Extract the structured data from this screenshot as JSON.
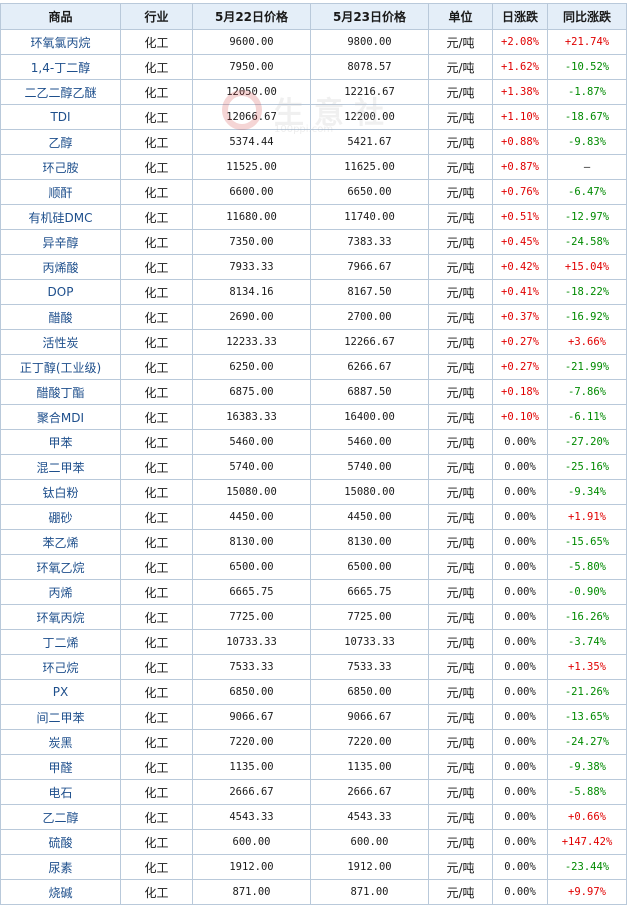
{
  "headers": [
    "商品",
    "行业",
    "5月22日价格",
    "5月23日价格",
    "单位",
    "日涨跌",
    "同比涨跌"
  ],
  "watermark": {
    "text": "生意社",
    "url": "100ppi.com"
  },
  "colors": {
    "up": "#e00000",
    "down": "#008a00",
    "header_bg": "#e4eef8",
    "name": "#1e4f8c"
  },
  "rows": [
    {
      "name": "环氧氯丙烷",
      "industry": "化工",
      "p22": "9600.00",
      "p23": "9800.00",
      "unit": "元/吨",
      "day": "+2.08%",
      "yoy": "+21.74%"
    },
    {
      "name": "1,4-丁二醇",
      "industry": "化工",
      "p22": "7950.00",
      "p23": "8078.57",
      "unit": "元/吨",
      "day": "+1.62%",
      "yoy": "-10.52%"
    },
    {
      "name": "二乙二醇乙醚",
      "industry": "化工",
      "p22": "12050.00",
      "p23": "12216.67",
      "unit": "元/吨",
      "day": "+1.38%",
      "yoy": "-1.87%"
    },
    {
      "name": "TDI",
      "industry": "化工",
      "p22": "12066.67",
      "p23": "12200.00",
      "unit": "元/吨",
      "day": "+1.10%",
      "yoy": "-18.67%"
    },
    {
      "name": "乙醇",
      "industry": "化工",
      "p22": "5374.44",
      "p23": "5421.67",
      "unit": "元/吨",
      "day": "+0.88%",
      "yoy": "-9.83%"
    },
    {
      "name": "环己胺",
      "industry": "化工",
      "p22": "11525.00",
      "p23": "11625.00",
      "unit": "元/吨",
      "day": "+0.87%",
      "yoy": "—"
    },
    {
      "name": "顺酐",
      "industry": "化工",
      "p22": "6600.00",
      "p23": "6650.00",
      "unit": "元/吨",
      "day": "+0.76%",
      "yoy": "-6.47%"
    },
    {
      "name": "有机硅DMC",
      "industry": "化工",
      "p22": "11680.00",
      "p23": "11740.00",
      "unit": "元/吨",
      "day": "+0.51%",
      "yoy": "-12.97%"
    },
    {
      "name": "异辛醇",
      "industry": "化工",
      "p22": "7350.00",
      "p23": "7383.33",
      "unit": "元/吨",
      "day": "+0.45%",
      "yoy": "-24.58%"
    },
    {
      "name": "丙烯酸",
      "industry": "化工",
      "p22": "7933.33",
      "p23": "7966.67",
      "unit": "元/吨",
      "day": "+0.42%",
      "yoy": "+15.04%"
    },
    {
      "name": "DOP",
      "industry": "化工",
      "p22": "8134.16",
      "p23": "8167.50",
      "unit": "元/吨",
      "day": "+0.41%",
      "yoy": "-18.22%"
    },
    {
      "name": "醋酸",
      "industry": "化工",
      "p22": "2690.00",
      "p23": "2700.00",
      "unit": "元/吨",
      "day": "+0.37%",
      "yoy": "-16.92%"
    },
    {
      "name": "活性炭",
      "industry": "化工",
      "p22": "12233.33",
      "p23": "12266.67",
      "unit": "元/吨",
      "day": "+0.27%",
      "yoy": "+3.66%"
    },
    {
      "name": "正丁醇(工业级)",
      "industry": "化工",
      "p22": "6250.00",
      "p23": "6266.67",
      "unit": "元/吨",
      "day": "+0.27%",
      "yoy": "-21.99%"
    },
    {
      "name": "醋酸丁酯",
      "industry": "化工",
      "p22": "6875.00",
      "p23": "6887.50",
      "unit": "元/吨",
      "day": "+0.18%",
      "yoy": "-7.86%"
    },
    {
      "name": "聚合MDI",
      "industry": "化工",
      "p22": "16383.33",
      "p23": "16400.00",
      "unit": "元/吨",
      "day": "+0.10%",
      "yoy": "-6.11%"
    },
    {
      "name": "甲苯",
      "industry": "化工",
      "p22": "5460.00",
      "p23": "5460.00",
      "unit": "元/吨",
      "day": "0.00%",
      "yoy": "-27.20%"
    },
    {
      "name": "混二甲苯",
      "industry": "化工",
      "p22": "5740.00",
      "p23": "5740.00",
      "unit": "元/吨",
      "day": "0.00%",
      "yoy": "-25.16%"
    },
    {
      "name": "钛白粉",
      "industry": "化工",
      "p22": "15080.00",
      "p23": "15080.00",
      "unit": "元/吨",
      "day": "0.00%",
      "yoy": "-9.34%"
    },
    {
      "name": "硼砂",
      "industry": "化工",
      "p22": "4450.00",
      "p23": "4450.00",
      "unit": "元/吨",
      "day": "0.00%",
      "yoy": "+1.91%"
    },
    {
      "name": "苯乙烯",
      "industry": "化工",
      "p22": "8130.00",
      "p23": "8130.00",
      "unit": "元/吨",
      "day": "0.00%",
      "yoy": "-15.65%"
    },
    {
      "name": "环氧乙烷",
      "industry": "化工",
      "p22": "6500.00",
      "p23": "6500.00",
      "unit": "元/吨",
      "day": "0.00%",
      "yoy": "-5.80%"
    },
    {
      "name": "丙烯",
      "industry": "化工",
      "p22": "6665.75",
      "p23": "6665.75",
      "unit": "元/吨",
      "day": "0.00%",
      "yoy": "-0.90%"
    },
    {
      "name": "环氧丙烷",
      "industry": "化工",
      "p22": "7725.00",
      "p23": "7725.00",
      "unit": "元/吨",
      "day": "0.00%",
      "yoy": "-16.26%"
    },
    {
      "name": "丁二烯",
      "industry": "化工",
      "p22": "10733.33",
      "p23": "10733.33",
      "unit": "元/吨",
      "day": "0.00%",
      "yoy": "-3.74%"
    },
    {
      "name": "环己烷",
      "industry": "化工",
      "p22": "7533.33",
      "p23": "7533.33",
      "unit": "元/吨",
      "day": "0.00%",
      "yoy": "+1.35%"
    },
    {
      "name": "PX",
      "industry": "化工",
      "p22": "6850.00",
      "p23": "6850.00",
      "unit": "元/吨",
      "day": "0.00%",
      "yoy": "-21.26%"
    },
    {
      "name": "间二甲苯",
      "industry": "化工",
      "p22": "9066.67",
      "p23": "9066.67",
      "unit": "元/吨",
      "day": "0.00%",
      "yoy": "-13.65%"
    },
    {
      "name": "炭黑",
      "industry": "化工",
      "p22": "7220.00",
      "p23": "7220.00",
      "unit": "元/吨",
      "day": "0.00%",
      "yoy": "-24.27%"
    },
    {
      "name": "甲醛",
      "industry": "化工",
      "p22": "1135.00",
      "p23": "1135.00",
      "unit": "元/吨",
      "day": "0.00%",
      "yoy": "-9.38%"
    },
    {
      "name": "电石",
      "industry": "化工",
      "p22": "2666.67",
      "p23": "2666.67",
      "unit": "元/吨",
      "day": "0.00%",
      "yoy": "-5.88%"
    },
    {
      "name": "乙二醇",
      "industry": "化工",
      "p22": "4543.33",
      "p23": "4543.33",
      "unit": "元/吨",
      "day": "0.00%",
      "yoy": "+0.66%"
    },
    {
      "name": "硫酸",
      "industry": "化工",
      "p22": "600.00",
      "p23": "600.00",
      "unit": "元/吨",
      "day": "0.00%",
      "yoy": "+147.42%"
    },
    {
      "name": "尿素",
      "industry": "化工",
      "p22": "1912.00",
      "p23": "1912.00",
      "unit": "元/吨",
      "day": "0.00%",
      "yoy": "-23.44%"
    },
    {
      "name": "烧碱",
      "industry": "化工",
      "p22": "871.00",
      "p23": "871.00",
      "unit": "元/吨",
      "day": "0.00%",
      "yoy": "+9.97%"
    }
  ]
}
